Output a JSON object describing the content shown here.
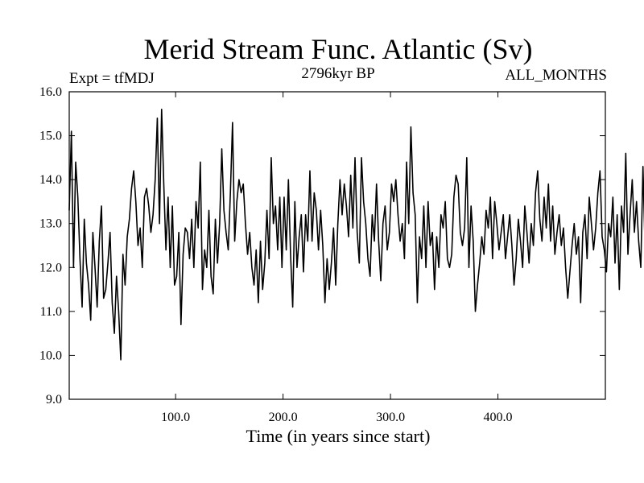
{
  "chart_data": {
    "type": "line",
    "title": "Merid Stream Func. Atlantic (Sv)",
    "subtitle_left": "Expt = tfMDJ",
    "subtitle_center": "2796kyr BP",
    "subtitle_right": "ALL_MONTHS",
    "xlabel": "Time (in years since start)",
    "ylabel": "",
    "xlim": [
      1,
      500
    ],
    "ylim": [
      9.0,
      16.0
    ],
    "x_ticks": [
      {
        "value": 100,
        "label": "100.0"
      },
      {
        "value": 200,
        "label": "200.0"
      },
      {
        "value": 300,
        "label": "300.0"
      },
      {
        "value": 400,
        "label": "400.0"
      }
    ],
    "y_ticks": [
      {
        "value": 9,
        "label": "9.0"
      },
      {
        "value": 10,
        "label": "10.0"
      },
      {
        "value": 11,
        "label": "11.0"
      },
      {
        "value": 12,
        "label": "12.0"
      },
      {
        "value": 13,
        "label": "13.0"
      },
      {
        "value": 14,
        "label": "14.0"
      },
      {
        "value": 15,
        "label": "15.0"
      },
      {
        "value": 16,
        "label": "16.0"
      }
    ],
    "grid": false,
    "series": [
      {
        "name": "Atlantic MOC",
        "x_start": 1,
        "x_step": 2,
        "values": [
          13.3,
          15.1,
          12.0,
          14.4,
          13.6,
          12.2,
          11.1,
          13.1,
          12.1,
          11.6,
          10.8,
          12.8,
          12.0,
          11.1,
          12.6,
          13.4,
          11.3,
          11.5,
          12.1,
          12.8,
          11.2,
          10.5,
          11.8,
          11.0,
          9.9,
          12.3,
          11.6,
          12.7,
          13.1,
          13.8,
          14.2,
          13.5,
          12.5,
          12.9,
          12.0,
          13.6,
          13.8,
          13.4,
          12.8,
          13.2,
          14.0,
          15.4,
          13.0,
          15.6,
          13.9,
          12.4,
          13.6,
          12.0,
          13.4,
          11.6,
          11.8,
          12.8,
          10.7,
          12.3,
          12.9,
          12.8,
          12.2,
          13.1,
          12.0,
          13.5,
          12.9,
          14.4,
          11.5,
          12.4,
          12.0,
          13.3,
          11.8,
          11.4,
          13.1,
          12.1,
          13.0,
          14.7,
          13.3,
          12.8,
          12.4,
          13.7,
          15.3,
          12.6,
          13.5,
          14.0,
          13.7,
          13.9,
          13.0,
          12.3,
          12.8,
          12.0,
          11.6,
          12.4,
          11.2,
          12.6,
          11.5,
          12.1,
          13.3,
          12.2,
          14.5,
          13.0,
          13.4,
          12.4,
          13.6,
          12.0,
          13.6,
          12.4,
          14.0,
          12.3,
          11.1,
          13.5,
          12.0,
          12.7,
          13.2,
          11.9,
          13.2,
          12.6,
          14.2,
          12.6,
          13.7,
          13.3,
          12.4,
          13.3,
          12.5,
          11.2,
          12.2,
          11.5,
          12.1,
          12.9,
          11.6,
          13.0,
          14.0,
          13.2,
          13.9,
          13.4,
          12.7,
          14.1,
          12.9,
          14.5,
          12.8,
          12.1,
          14.5,
          13.5,
          13.0,
          12.2,
          11.8,
          13.2,
          12.6,
          13.9,
          12.6,
          11.7,
          13.0,
          13.4,
          12.4,
          12.8,
          13.9,
          13.5,
          14.0,
          13.2,
          12.6,
          13.0,
          12.2,
          14.4,
          13.0,
          15.2,
          13.7,
          13.2,
          11.2,
          12.7,
          12.2,
          13.4,
          12.0,
          13.5,
          12.5,
          12.8,
          11.5,
          12.7,
          12.0,
          13.2,
          12.9,
          13.5,
          12.2,
          12.0,
          12.3,
          13.6,
          14.1,
          13.9,
          12.8,
          12.5,
          12.9,
          14.5,
          12.0,
          13.4,
          12.6,
          11.0,
          11.6,
          12.1,
          12.7,
          12.3,
          13.3,
          12.9,
          13.6,
          12.2,
          13.5,
          13.0,
          12.4,
          12.8,
          13.2,
          12.2,
          12.7,
          13.2,
          12.5,
          11.6,
          12.2,
          13.1,
          12.6,
          12.0,
          13.4,
          12.8,
          12.1,
          13.0,
          12.5,
          13.7,
          14.2,
          13.1,
          12.6,
          13.6,
          12.9,
          13.9,
          12.6,
          13.4,
          12.3,
          12.8,
          13.2,
          12.5,
          12.9,
          12.0,
          11.3,
          11.9,
          12.5,
          13.0,
          12.3,
          12.7,
          11.2,
          12.8,
          13.2,
          12.2,
          13.6,
          13.0,
          12.4,
          12.9,
          13.7,
          14.2,
          12.7,
          12.4,
          11.9,
          13.0,
          12.7,
          13.6,
          12.1,
          13.2,
          11.5,
          13.4,
          12.8,
          14.6,
          12.3,
          13.2,
          14.0,
          12.8,
          13.5,
          12.6,
          12.0,
          14.3,
          12.4,
          13.1,
          12.5,
          12.9,
          12.0,
          13.6,
          14.7,
          13.3,
          12.7,
          12.1,
          13.0,
          12.5,
          13.8,
          12.2,
          13.2,
          12.5,
          13.7,
          14.9,
          13.0,
          14.0,
          12.9,
          13.5,
          12.2,
          13.7,
          13.1,
          12.0,
          12.9,
          12.4,
          13.2,
          12.3,
          13.4,
          11.5,
          12.6,
          12.9,
          13.6,
          12.6,
          13.0,
          12.3,
          13.9,
          12.7,
          12.9,
          11.2,
          12.5,
          13.0,
          12.6,
          12.0,
          13.3,
          12.4,
          13.8,
          12.9,
          12.0,
          13.7,
          12.5,
          13.0,
          13.5,
          12.2,
          12.9,
          13.3,
          12.7,
          13.6,
          12.5,
          13.2,
          12.8,
          13.0,
          14.7,
          12.9,
          14.2,
          13.1,
          13.6,
          14.2,
          13.0,
          13.8,
          12.5,
          12.9,
          12.2,
          13.5,
          14.3,
          13.0,
          13.9,
          12.8,
          11.4,
          10.9,
          12.2,
          13.2,
          12.8,
          11.7,
          12.4,
          13.7,
          12.1,
          13.0,
          12.7,
          12.4,
          12.0,
          12.5,
          13.0,
          11.2,
          12.0,
          12.6,
          13.1,
          12.7,
          12.5,
          13.2,
          12.4,
          13.9,
          12.8,
          13.4,
          12.6,
          12.2,
          13.1,
          12.8,
          13.6,
          12.9,
          12.2,
          13.0,
          13.3,
          12.5,
          12.9,
          11.9,
          13.3,
          12.2,
          12.8,
          13.6,
          12.7,
          12.3,
          12.0,
          13.4,
          12.7,
          12.5,
          13.8,
          13.1,
          12.6,
          13.3,
          12.1,
          12.9,
          13.5,
          13.0,
          12.5,
          13.8,
          12.2,
          13.0,
          12.0,
          12.9,
          13.4,
          12.6,
          14.1,
          13.7,
          12.7,
          12.2,
          13.2,
          12.5,
          13.3,
          14.2,
          13.0,
          12.4,
          12.8,
          13.4,
          11.6,
          12.1,
          13.0,
          12.4,
          13.5,
          13.0,
          12.6,
          12.9,
          13.7,
          12.8,
          12.1,
          13.2,
          12.6,
          13.3,
          13.0,
          14.2,
          12.3,
          13.5,
          12.6,
          14.7,
          12.9,
          13.4,
          13.6,
          13.1,
          12.5,
          13.6,
          13.2,
          12.5,
          13.0,
          12.5,
          14.3,
          13.9,
          13.0,
          12.8,
          13.8,
          15.0,
          14.3,
          13.6,
          15.3,
          14.0,
          13.2,
          12.6,
          14.6,
          13.3,
          12.9,
          12.5,
          12.7,
          13.8,
          12.5,
          12.1,
          13.2,
          12.8,
          14.1,
          12.5,
          13.7,
          13.0,
          12.4,
          12.9,
          12.0,
          13.5,
          12.7,
          11.5,
          12.6,
          13.3,
          12.1,
          13.6,
          12.8,
          13.0,
          12.6,
          13.9,
          12.4,
          14.2,
          13.1,
          12.7,
          13.4,
          12.6,
          11.8,
          13.0,
          12.5,
          13.6,
          13.2,
          12.8,
          13.4,
          12.0,
          12.6,
          13.5,
          13.0,
          12.7,
          13.8,
          13.1,
          12.4,
          13.7,
          12.0,
          12.8,
          13.2,
          12.3,
          13.6,
          13.0,
          12.5,
          13.3,
          12.1,
          13.9,
          12.6,
          13.2,
          12.8,
          13.5,
          12.9,
          13.1,
          11.8,
          12.4,
          12.9,
          13.2,
          12.6,
          12.2,
          13.0,
          12.8,
          13.5,
          12.3,
          13.0,
          12.7,
          13.4,
          12.5,
          13.1,
          12.2,
          13.0,
          12.6,
          12.4,
          13.6,
          12.9,
          13.2,
          12.4,
          13.8,
          12.7,
          13.3,
          12.6,
          12.1,
          12.8,
          13.5,
          12.2,
          13.0,
          12.5,
          13.4,
          12.9,
          12.6,
          13.1,
          12.4,
          13.8,
          12.8,
          13.2,
          14.3,
          15.1,
          12.7,
          13.6,
          12.5,
          12.9,
          13.1,
          13.4,
          12.8,
          13.7,
          12.4,
          12.9,
          13.5,
          12.6,
          12.3,
          13.0,
          12.7,
          13.3,
          12.5,
          12.2,
          13.1,
          12.8,
          13.6,
          12.9,
          12.4,
          13.2,
          14.0,
          12.6,
          13.4,
          13.7,
          12.2,
          13.0,
          11.5,
          12.4,
          13.6,
          12.8,
          13.1,
          12.3,
          13.5,
          12.7,
          14.7,
          13.2,
          12.6,
          13.8,
          12.9,
          12.1,
          13.0
        ]
      }
    ]
  }
}
